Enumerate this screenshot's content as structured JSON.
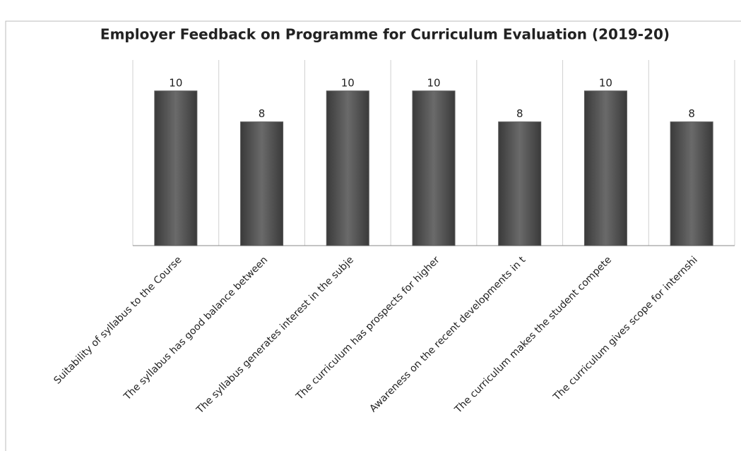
{
  "chart_data": {
    "type": "bar",
    "title": "Employer Feedback on Programme for Curriculum Evaluation (2019-20)",
    "categories": [
      "Suitability of syllabus to the Course",
      "The syllabus has good balance between",
      "The syllabus generates interest in the subje",
      "The curriculum has prospects for higher",
      "Awareness on the recent developments in t",
      "The curriculum makes the student compete",
      "The curriculum gives scope for internshi"
    ],
    "values": [
      10,
      8,
      10,
      10,
      8,
      10,
      8
    ],
    "color": "#5a5a5a",
    "ylim": [
      0,
      12
    ]
  }
}
